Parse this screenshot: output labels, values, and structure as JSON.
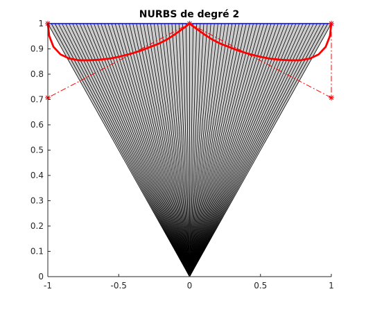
{
  "chart_data": {
    "type": "line",
    "title": "NURBS de degré 2",
    "xlabel": "",
    "ylabel": "",
    "xlim": [
      -1,
      1
    ],
    "ylim": [
      0,
      1
    ],
    "grid": false,
    "x_ticks": [
      -1,
      -0.5,
      0,
      0.5,
      1
    ],
    "x_tick_labels": [
      "-1",
      "-0.5",
      "0",
      "0.5",
      "1"
    ],
    "y_ticks": [
      0,
      0.1,
      0.2,
      0.3,
      0.4,
      0.5,
      0.6,
      0.7,
      0.8,
      0.9,
      1
    ],
    "y_tick_labels": [
      "0",
      "0.1",
      "0.2",
      "0.3",
      "0.4",
      "0.5",
      "0.6",
      "0.7",
      "0.8",
      "0.9",
      "1"
    ],
    "fan": {
      "apex": [
        0,
        0
      ],
      "top_y": 1,
      "x_from": -1,
      "x_to": 1,
      "ray_count": 81,
      "fill_color": "#cccccc",
      "line_color": "#000000"
    },
    "series": [
      {
        "role": "top-boundary",
        "color": "#0000ff",
        "marker": "*",
        "x": [
          -1,
          0,
          1
        ],
        "y": [
          1,
          1,
          1
        ]
      },
      {
        "role": "control-polygon",
        "color": "#ff0000",
        "style": "dash-dot",
        "marker": "*",
        "x": [
          -1,
          -1,
          0,
          1,
          1
        ],
        "y": [
          1,
          0.707,
          1,
          0.707,
          1
        ]
      },
      {
        "role": "nurbs-curve",
        "color": "#ff0000",
        "x": [
          -1,
          -0.99,
          -0.96,
          -0.91,
          -0.85,
          -0.78,
          -0.71,
          -0.64,
          -0.56,
          -0.49,
          -0.42,
          -0.35,
          -0.29,
          -0.22,
          -0.16,
          -0.11,
          -0.07,
          -0.03,
          0,
          0.03,
          0.07,
          0.11,
          0.16,
          0.22,
          0.29,
          0.35,
          0.42,
          0.49,
          0.56,
          0.64,
          0.71,
          0.78,
          0.85,
          0.91,
          0.96,
          0.99,
          1
        ],
        "y": [
          1,
          0.951,
          0.908,
          0.878,
          0.862,
          0.855,
          0.855,
          0.857,
          0.862,
          0.87,
          0.88,
          0.892,
          0.905,
          0.92,
          0.937,
          0.955,
          0.971,
          0.987,
          1,
          0.987,
          0.971,
          0.955,
          0.937,
          0.92,
          0.905,
          0.892,
          0.88,
          0.87,
          0.862,
          0.857,
          0.855,
          0.855,
          0.862,
          0.878,
          0.908,
          0.951,
          1
        ]
      }
    ]
  }
}
